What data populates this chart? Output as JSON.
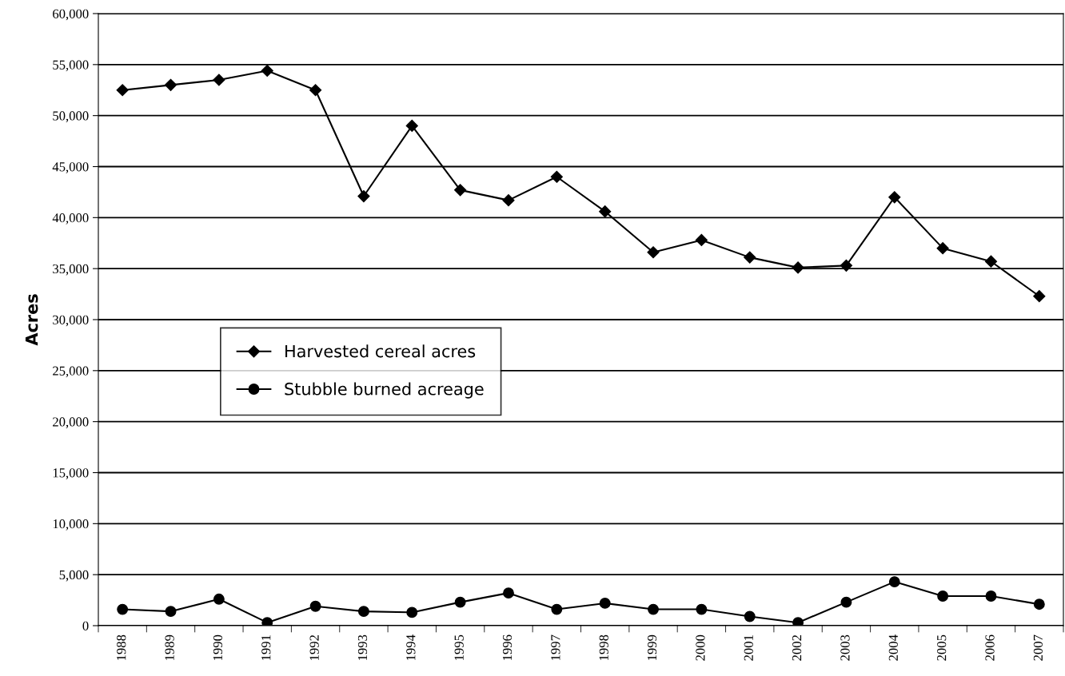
{
  "chart_data": {
    "type": "line",
    "ylabel": "Acres",
    "categories": [
      "1988",
      "1989",
      "1990",
      "1991",
      "1992",
      "1993",
      "1994",
      "1995",
      "1996",
      "1997",
      "1998",
      "1999",
      "2000",
      "2001",
      "2002",
      "2003",
      "2004",
      "2005",
      "2006",
      "2007"
    ],
    "series": [
      {
        "name": "Harvested cereal acres",
        "color": "#000000",
        "marker": "diamond",
        "values": [
          52500,
          53000,
          53500,
          54400,
          52500,
          42100,
          49000,
          42700,
          41700,
          44000,
          40600,
          36600,
          37800,
          36100,
          35100,
          35300,
          42000,
          37000,
          35700,
          32300
        ]
      },
      {
        "name": "Stubble burned acreage",
        "color": "#000000",
        "marker": "circle",
        "values": [
          1600,
          1400,
          2600,
          300,
          1900,
          1400,
          1300,
          2300,
          3200,
          1600,
          2200,
          1600,
          1600,
          900,
          300,
          2300,
          4300,
          2900,
          2900,
          2100
        ]
      }
    ],
    "ylim": [
      0,
      60000
    ],
    "yticks": [
      {
        "value": 0,
        "label": "0"
      },
      {
        "value": 5000,
        "label": "5,000"
      },
      {
        "value": 10000,
        "label": "10,000"
      },
      {
        "value": 15000,
        "label": "15,000"
      },
      {
        "value": 20000,
        "label": "20,000"
      },
      {
        "value": 25000,
        "label": "25,000"
      },
      {
        "value": 30000,
        "label": "30,000"
      },
      {
        "value": 35000,
        "label": "35,000"
      },
      {
        "value": 40000,
        "label": "40,000"
      },
      {
        "value": 45000,
        "label": "45,000"
      },
      {
        "value": 50000,
        "label": "50,000"
      },
      {
        "value": 55000,
        "label": "55,000"
      },
      {
        "value": 60000,
        "label": "60,000"
      }
    ],
    "grid": "y",
    "legend": "center left",
    "line_style": "solid"
  }
}
